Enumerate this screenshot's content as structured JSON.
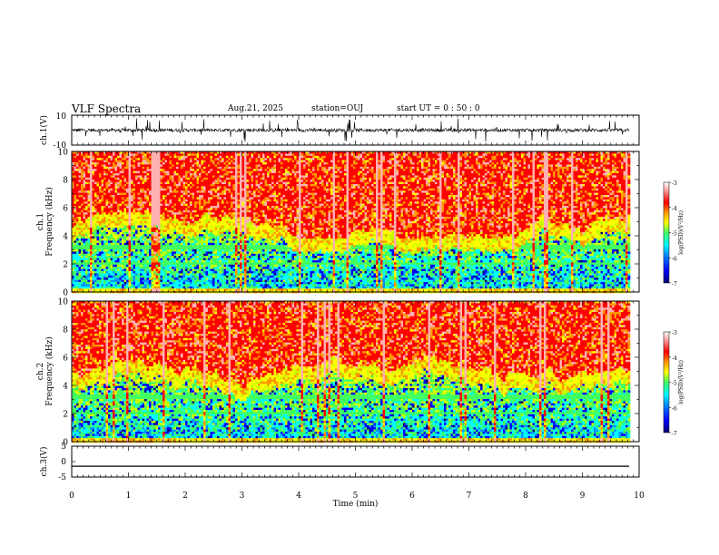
{
  "header": {
    "title": "VLF Spectra",
    "date": "Aug.21, 2025",
    "station": "station=OUJ",
    "start": "start UT =  0 : 50 : 0"
  },
  "colors": {
    "background": "#ffffff",
    "axis": "#000000",
    "colormap": [
      "#00007a",
      "#0000ff",
      "#0090ff",
      "#00ffff",
      "#40ff60",
      "#c8ff00",
      "#ffff00",
      "#ff9800",
      "#ff0000",
      "#ffb0b0",
      "#ffffff"
    ]
  },
  "chart_data": [
    {
      "type": "line",
      "ylabel": "ch.1(V)",
      "yticklabels": [
        "10",
        "-10"
      ],
      "ylim": [
        -10,
        10
      ],
      "xlim": [
        0,
        10
      ],
      "series": [
        {
          "values_description_level": 0
        }
      ],
      "trace_color": "#000000"
    },
    {
      "type": "heatmap",
      "ylabel": "ch.1\nFrequency (kHz)",
      "ylabel_lines": [
        "ch.1",
        "Frequency (kHz)"
      ],
      "ylim": [
        0,
        10
      ],
      "yticks": [
        0,
        2,
        4,
        6,
        8,
        10
      ],
      "xlim": [
        0,
        9.8
      ],
      "colorbar": {
        "label": "log(PSD)(V²/Hz)",
        "ticks": [
          -3,
          -4,
          -5,
          -6,
          -7
        ],
        "range": [
          -7,
          -3
        ]
      }
    },
    {
      "type": "heatmap",
      "ylabel": "ch.2\nFrequency (kHz)",
      "ylabel_lines": [
        "ch.2",
        "Frequency (kHz)"
      ],
      "ylim": [
        0,
        10
      ],
      "yticks": [
        0,
        2,
        4,
        6,
        8,
        10
      ],
      "xlim": [
        0,
        9.8
      ],
      "colorbar": {
        "label": "log(PSD)(V²/Hz)",
        "ticks": [
          -3,
          -4,
          -5,
          -6,
          -7
        ],
        "range": [
          -7,
          -3
        ]
      }
    },
    {
      "type": "line",
      "ylabel": "ch.3(V)",
      "yticklabels": [
        "5",
        "0",
        "-5"
      ],
      "ylim": [
        -5,
        5
      ],
      "xlim": [
        0,
        10
      ],
      "series": [
        {
          "values": [
            -1.5,
            -1.5
          ]
        }
      ],
      "trace_color": "#000000"
    }
  ],
  "xaxis": {
    "label": "Time (min)",
    "ticks": [
      0,
      1,
      2,
      3,
      4,
      5,
      6,
      7,
      8,
      9,
      10
    ],
    "range": [
      0,
      10
    ]
  }
}
